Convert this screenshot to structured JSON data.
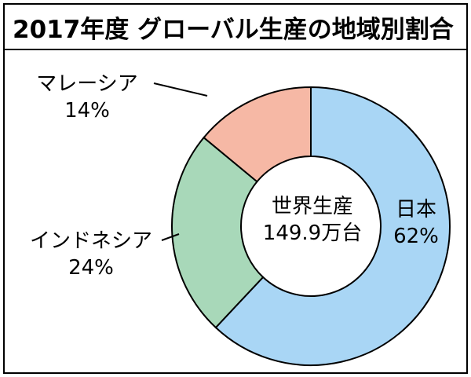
{
  "title": "2017年度 グローバル生産の地域別割合",
  "center": {
    "line1": "世界生産",
    "line2": "149.9万台"
  },
  "colors": {
    "japan": "#a9d6f5",
    "indonesia": "#a8d8b9",
    "malaysia": "#f6b8a5",
    "outline": "#000000"
  },
  "chart_data": {
    "type": "pie",
    "title": "2017年度 グローバル生産の地域別割合",
    "total_label": "149.9万台",
    "slices": [
      {
        "label": "日本",
        "value": 62,
        "value_label": "62%"
      },
      {
        "label": "インドネシア",
        "value": 24,
        "value_label": "24%"
      },
      {
        "label": "マレーシア",
        "value": 14,
        "value_label": "14%"
      }
    ]
  }
}
